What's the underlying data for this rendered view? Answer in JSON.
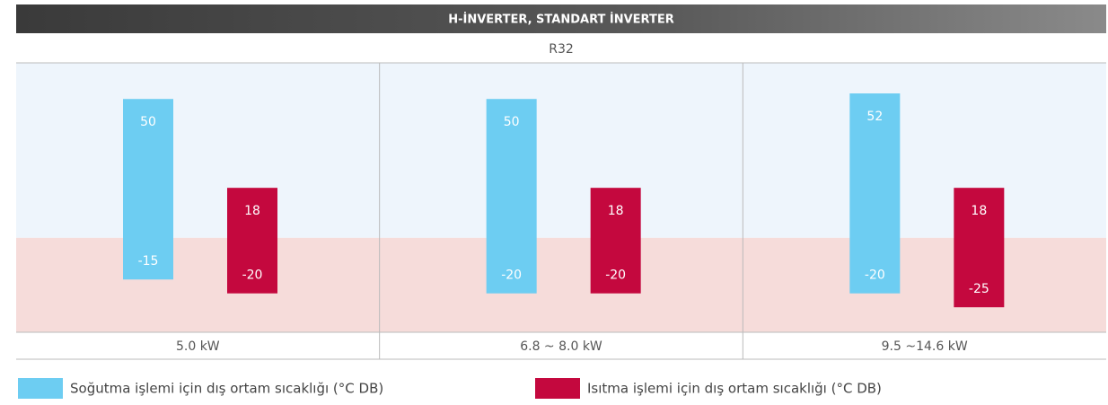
{
  "chart_data": {
    "type": "range-bar",
    "title": "H-İNVERTER, STANDART İNVERTER",
    "subtitle": "R32",
    "categories": [
      "5.0 kW",
      "6.8 ~ 8.0 kW",
      "9.5 ~14.6 kW"
    ],
    "series": [
      {
        "name": "Soğutma işlemi için dış ortam sıcaklığı (°C DB)",
        "color": "#6dcdf2",
        "values": [
          [
            -15,
            50
          ],
          [
            -20,
            50
          ],
          [
            -20,
            52
          ]
        ]
      },
      {
        "name": "Isıtma işlemi için dış ortam sıcaklığı (°C DB)",
        "color": "#c4083e",
        "values": [
          [
            -20,
            18
          ],
          [
            -20,
            18
          ],
          [
            -25,
            18
          ]
        ]
      }
    ],
    "ylim": [
      -34,
      63
    ]
  }
}
